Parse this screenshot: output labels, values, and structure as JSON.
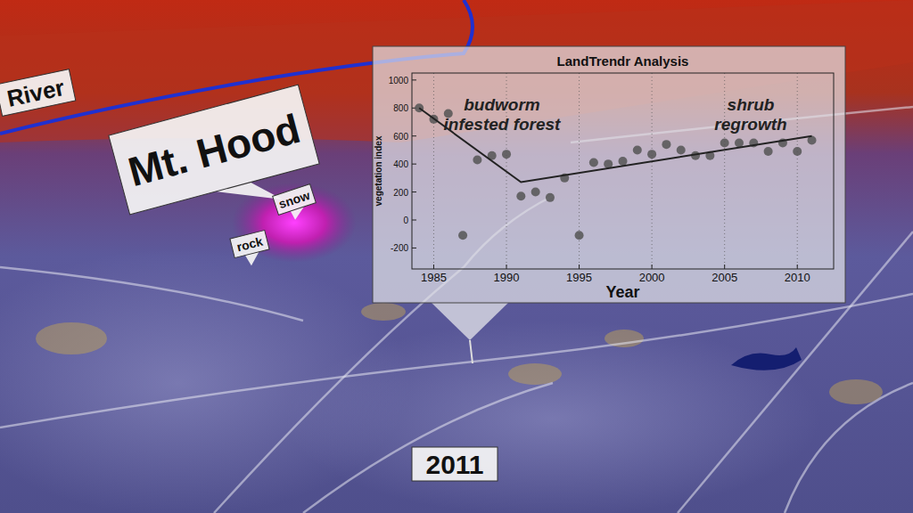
{
  "map": {
    "labels": [
      "River",
      "Mt. Hood",
      "snow",
      "rock"
    ],
    "year_label": "2011"
  },
  "chart_data": {
    "type": "scatter",
    "title": "LandTrendr Analysis",
    "x_label": "Year",
    "y_label": "vegetation index",
    "xlim": [
      1983.5,
      2012.5
    ],
    "xticks": [
      1985,
      1990,
      1995,
      2000,
      2005,
      2010
    ],
    "ylim": [
      -350,
      1050
    ],
    "yticks": [
      -200,
      0,
      200,
      400,
      600,
      800,
      1000
    ],
    "grid": "x",
    "annotations": [
      [
        "budworm",
        "infested forest"
      ],
      [
        "shrub",
        "regrowth"
      ]
    ],
    "series": [
      {
        "type": "scatter",
        "color": "#555555",
        "marker": "circle",
        "x": [
          1984,
          1985,
          1986,
          1987,
          1988,
          1989,
          1990,
          1991,
          1992,
          1993,
          1994,
          1995,
          1996,
          1997,
          1998,
          1999,
          2000,
          2001,
          2002,
          2003,
          2004,
          2005,
          2006,
          2007,
          2008,
          2009,
          2010,
          2011
        ],
        "values": [
          800,
          720,
          760,
          -110,
          430,
          460,
          470,
          170,
          200,
          160,
          300,
          -110,
          410,
          400,
          420,
          500,
          470,
          540,
          500,
          460,
          460,
          550,
          550,
          550,
          490,
          550,
          490,
          570
        ]
      },
      {
        "type": "line",
        "color": "#222222",
        "line_style": "solid",
        "x": [
          1984,
          1991,
          2011
        ],
        "values": [
          800,
          270,
          600
        ]
      }
    ]
  }
}
